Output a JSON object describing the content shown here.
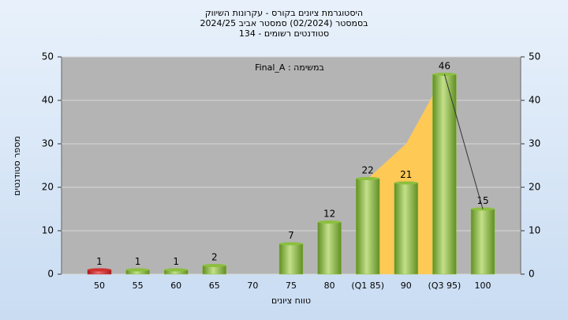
{
  "chart_data": {
    "type": "bar",
    "title": [
      "היסטוגרמת ציונים בקורס - עקרונות השיווק",
      "בסמסטר  (02/2024)  סמסטר אביב 2024/25",
      "סטודנטים רשומים - 134"
    ],
    "annotation": "Final_A : במשימה",
    "x_label": "טווח ציונים",
    "y_label": "מספר סטודנטים",
    "categories": [
      "50",
      "55",
      "60",
      "65",
      "70",
      "75",
      "80",
      "(Q1 85)",
      "90",
      "(Q3 95)",
      "100"
    ],
    "values": [
      1,
      1,
      1,
      2,
      null,
      7,
      12,
      22,
      21,
      46,
      15
    ],
    "colors": [
      "#d03030",
      "#8cbf3f",
      "#8cbf3f",
      "#8cbf3f",
      "#8cbf3f",
      "#8cbf3f",
      "#8cbf3f",
      "#8cbf3f",
      "#8cbf3f",
      "#8cbf3f",
      "#8cbf3f"
    ],
    "area": {
      "values": [
        null,
        null,
        null,
        null,
        null,
        null,
        null,
        22,
        30,
        46,
        null
      ],
      "color": "#ffc955"
    },
    "line": {
      "values": [
        null,
        null,
        null,
        null,
        null,
        null,
        null,
        null,
        null,
        46,
        15
      ],
      "color": "#333333"
    },
    "ylim": [
      0,
      50
    ],
    "yticks": [
      0,
      10,
      20,
      30,
      40,
      50
    ],
    "y2lim": [
      0,
      50
    ],
    "y2ticks": [
      0,
      10,
      20,
      30,
      40,
      50
    ],
    "grid": true
  }
}
